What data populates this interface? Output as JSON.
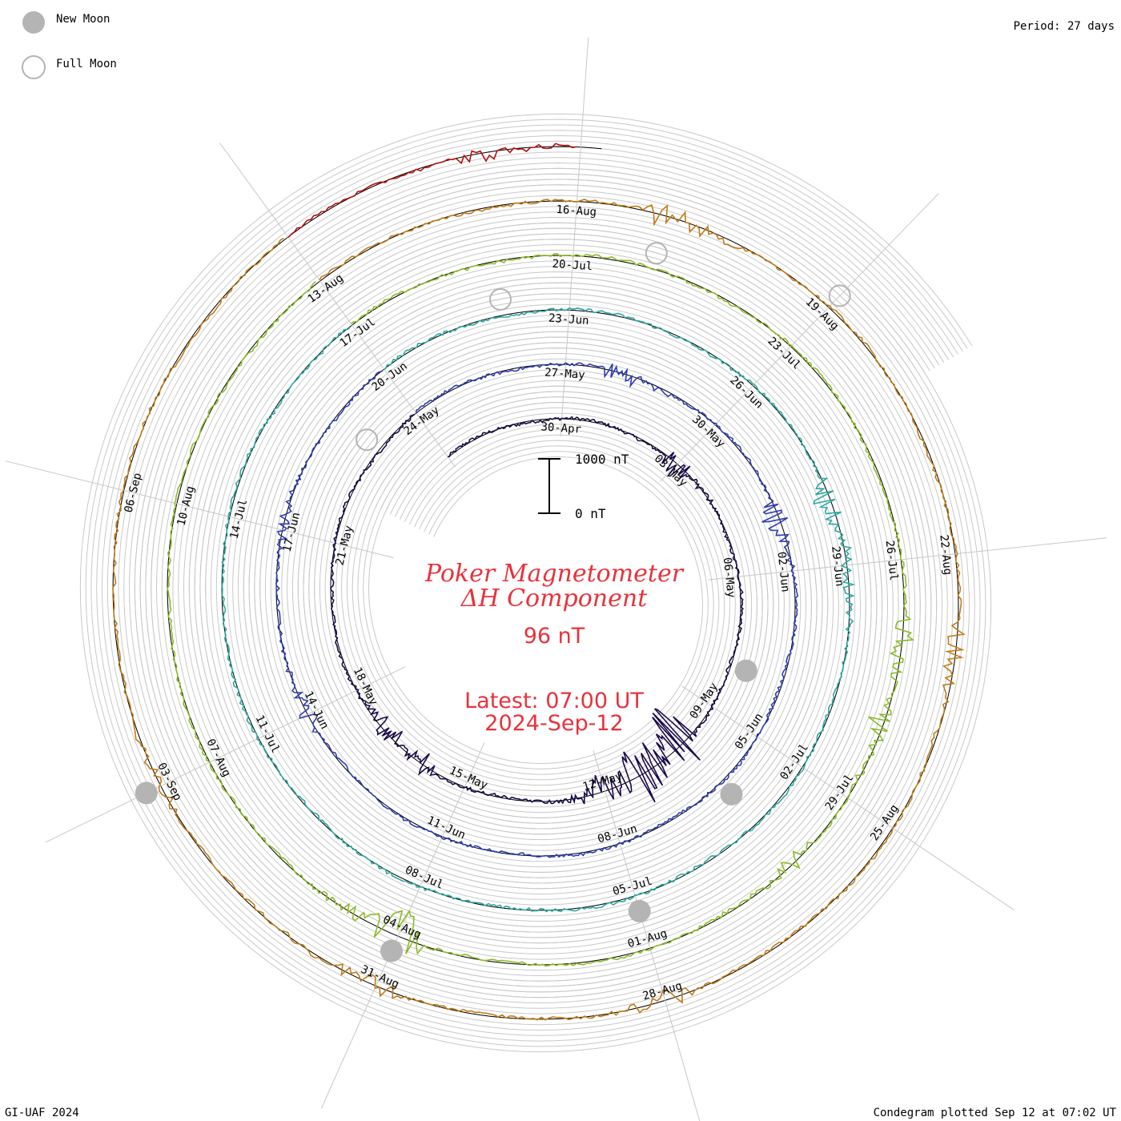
{
  "header": {
    "new_moon_label": "New Moon",
    "full_moon_label": "Full Moon",
    "period_label": "Period: 27 days"
  },
  "footer": {
    "credit": "GI-UAF 2024",
    "plotted": "Condegram plotted Sep 12 at 07:02 UT"
  },
  "center": {
    "title_line1": "Poker Magnetometer",
    "title_line2": "ΔH Component",
    "current_value": "96 nT",
    "latest_line1": "Latest: 07:00 UT",
    "latest_line2": "2024-Sep-12"
  },
  "scale_bar": {
    "top_label": "1000 nT",
    "bottom_label": "0 nT"
  },
  "colors": {
    "title_red": "#e8323c",
    "moon_new": "#b4b4b4",
    "moon_full": "#b4b4b4",
    "grid": "#c8c8c8"
  },
  "chart_data": {
    "type": "line",
    "subtype": "condegram-spiral",
    "title": "Poker Magnetometer ΔH Component",
    "period_days": 27,
    "scale_nT": [
      0,
      1000
    ],
    "date_ticks": [
      "30-Apr",
      "03-May",
      "06-May",
      "09-May",
      "12-May",
      "15-May",
      "18-May",
      "21-May",
      "24-May",
      "27-May",
      "30-May",
      "02-Jun",
      "05-Jun",
      "08-Jun",
      "11-Jun",
      "14-Jun",
      "17-Jun",
      "20-Jun",
      "23-Jun",
      "26-Jun",
      "29-Jun",
      "02-Jul",
      "05-Jul",
      "08-Jul",
      "11-Jul",
      "14-Jul",
      "17-Jul",
      "20-Jul",
      "23-Jul",
      "26-Jul",
      "29-Jul",
      "01-Aug",
      "04-Aug",
      "07-Aug",
      "10-Aug",
      "13-Aug",
      "16-Aug",
      "19-Aug",
      "22-Aug",
      "25-Aug",
      "28-Aug",
      "31-Aug",
      "03-Sep",
      "06-Sep"
    ],
    "series": [
      {
        "turn": 1,
        "start": "27-Apr",
        "end": "24-May",
        "color": "#1a0a4a",
        "disturbances": [
          {
            "date": "03-May",
            "amp": 300
          },
          {
            "date": "10-May",
            "amp": 900
          },
          {
            "date": "11-May",
            "amp": 1000
          },
          {
            "date": "12-May",
            "amp": 400
          },
          {
            "date": "16-May",
            "amp": 250
          },
          {
            "date": "17-May",
            "amp": 250
          }
        ]
      },
      {
        "turn": 2,
        "start": "24-May",
        "end": "20-Jun",
        "color": "#2e3cb0",
        "disturbances": [
          {
            "date": "28-May",
            "amp": 250
          },
          {
            "date": "01-Jun",
            "amp": 250
          },
          {
            "date": "14-Jun",
            "amp": 200
          },
          {
            "date": "17-Jun",
            "amp": 150
          }
        ]
      },
      {
        "turn": 3,
        "start": "20-Jun",
        "end": "17-Jul",
        "color": "#2ea6a0",
        "disturbances": [
          {
            "date": "28-Jun",
            "amp": 250
          },
          {
            "date": "29-Jun",
            "amp": 250
          },
          {
            "date": "17-Jun",
            "amp": 150
          }
        ]
      },
      {
        "turn": 4,
        "start": "17-Jul",
        "end": "13-Aug",
        "color": "#8cba2a",
        "disturbances": [
          {
            "date": "27-Jul",
            "amp": 250
          },
          {
            "date": "28-Jul",
            "amp": 250
          },
          {
            "date": "30-Jul",
            "amp": 200
          },
          {
            "date": "04-Aug",
            "amp": 500
          }
        ]
      },
      {
        "turn": 5,
        "start": "13-Aug",
        "end": "09-Sep",
        "color": "#c07a18",
        "disturbances": [
          {
            "date": "17-Aug",
            "amp": 300
          },
          {
            "date": "23-Aug",
            "amp": 250
          },
          {
            "date": "28-Aug",
            "amp": 200
          },
          {
            "date": "31-Aug",
            "amp": 200
          },
          {
            "date": "03-Sep",
            "amp": 150
          }
        ]
      },
      {
        "turn": 6,
        "start": "09-Sep",
        "end": "12-Sep",
        "color": "#b01010",
        "disturbances": [
          {
            "date": "11-Sep",
            "amp": 150
          }
        ]
      }
    ],
    "moon_phases": [
      {
        "type": "new",
        "date": "08-May"
      },
      {
        "type": "full",
        "date": "23-May"
      },
      {
        "type": "new",
        "date": "06-Jun"
      },
      {
        "type": "full",
        "date": "22-Jun"
      },
      {
        "type": "new",
        "date": "05-Jul"
      },
      {
        "type": "full",
        "date": "21-Jul"
      },
      {
        "type": "new",
        "date": "04-Aug"
      },
      {
        "type": "full",
        "date": "19-Aug"
      },
      {
        "type": "new",
        "date": "03-Sep"
      }
    ]
  }
}
